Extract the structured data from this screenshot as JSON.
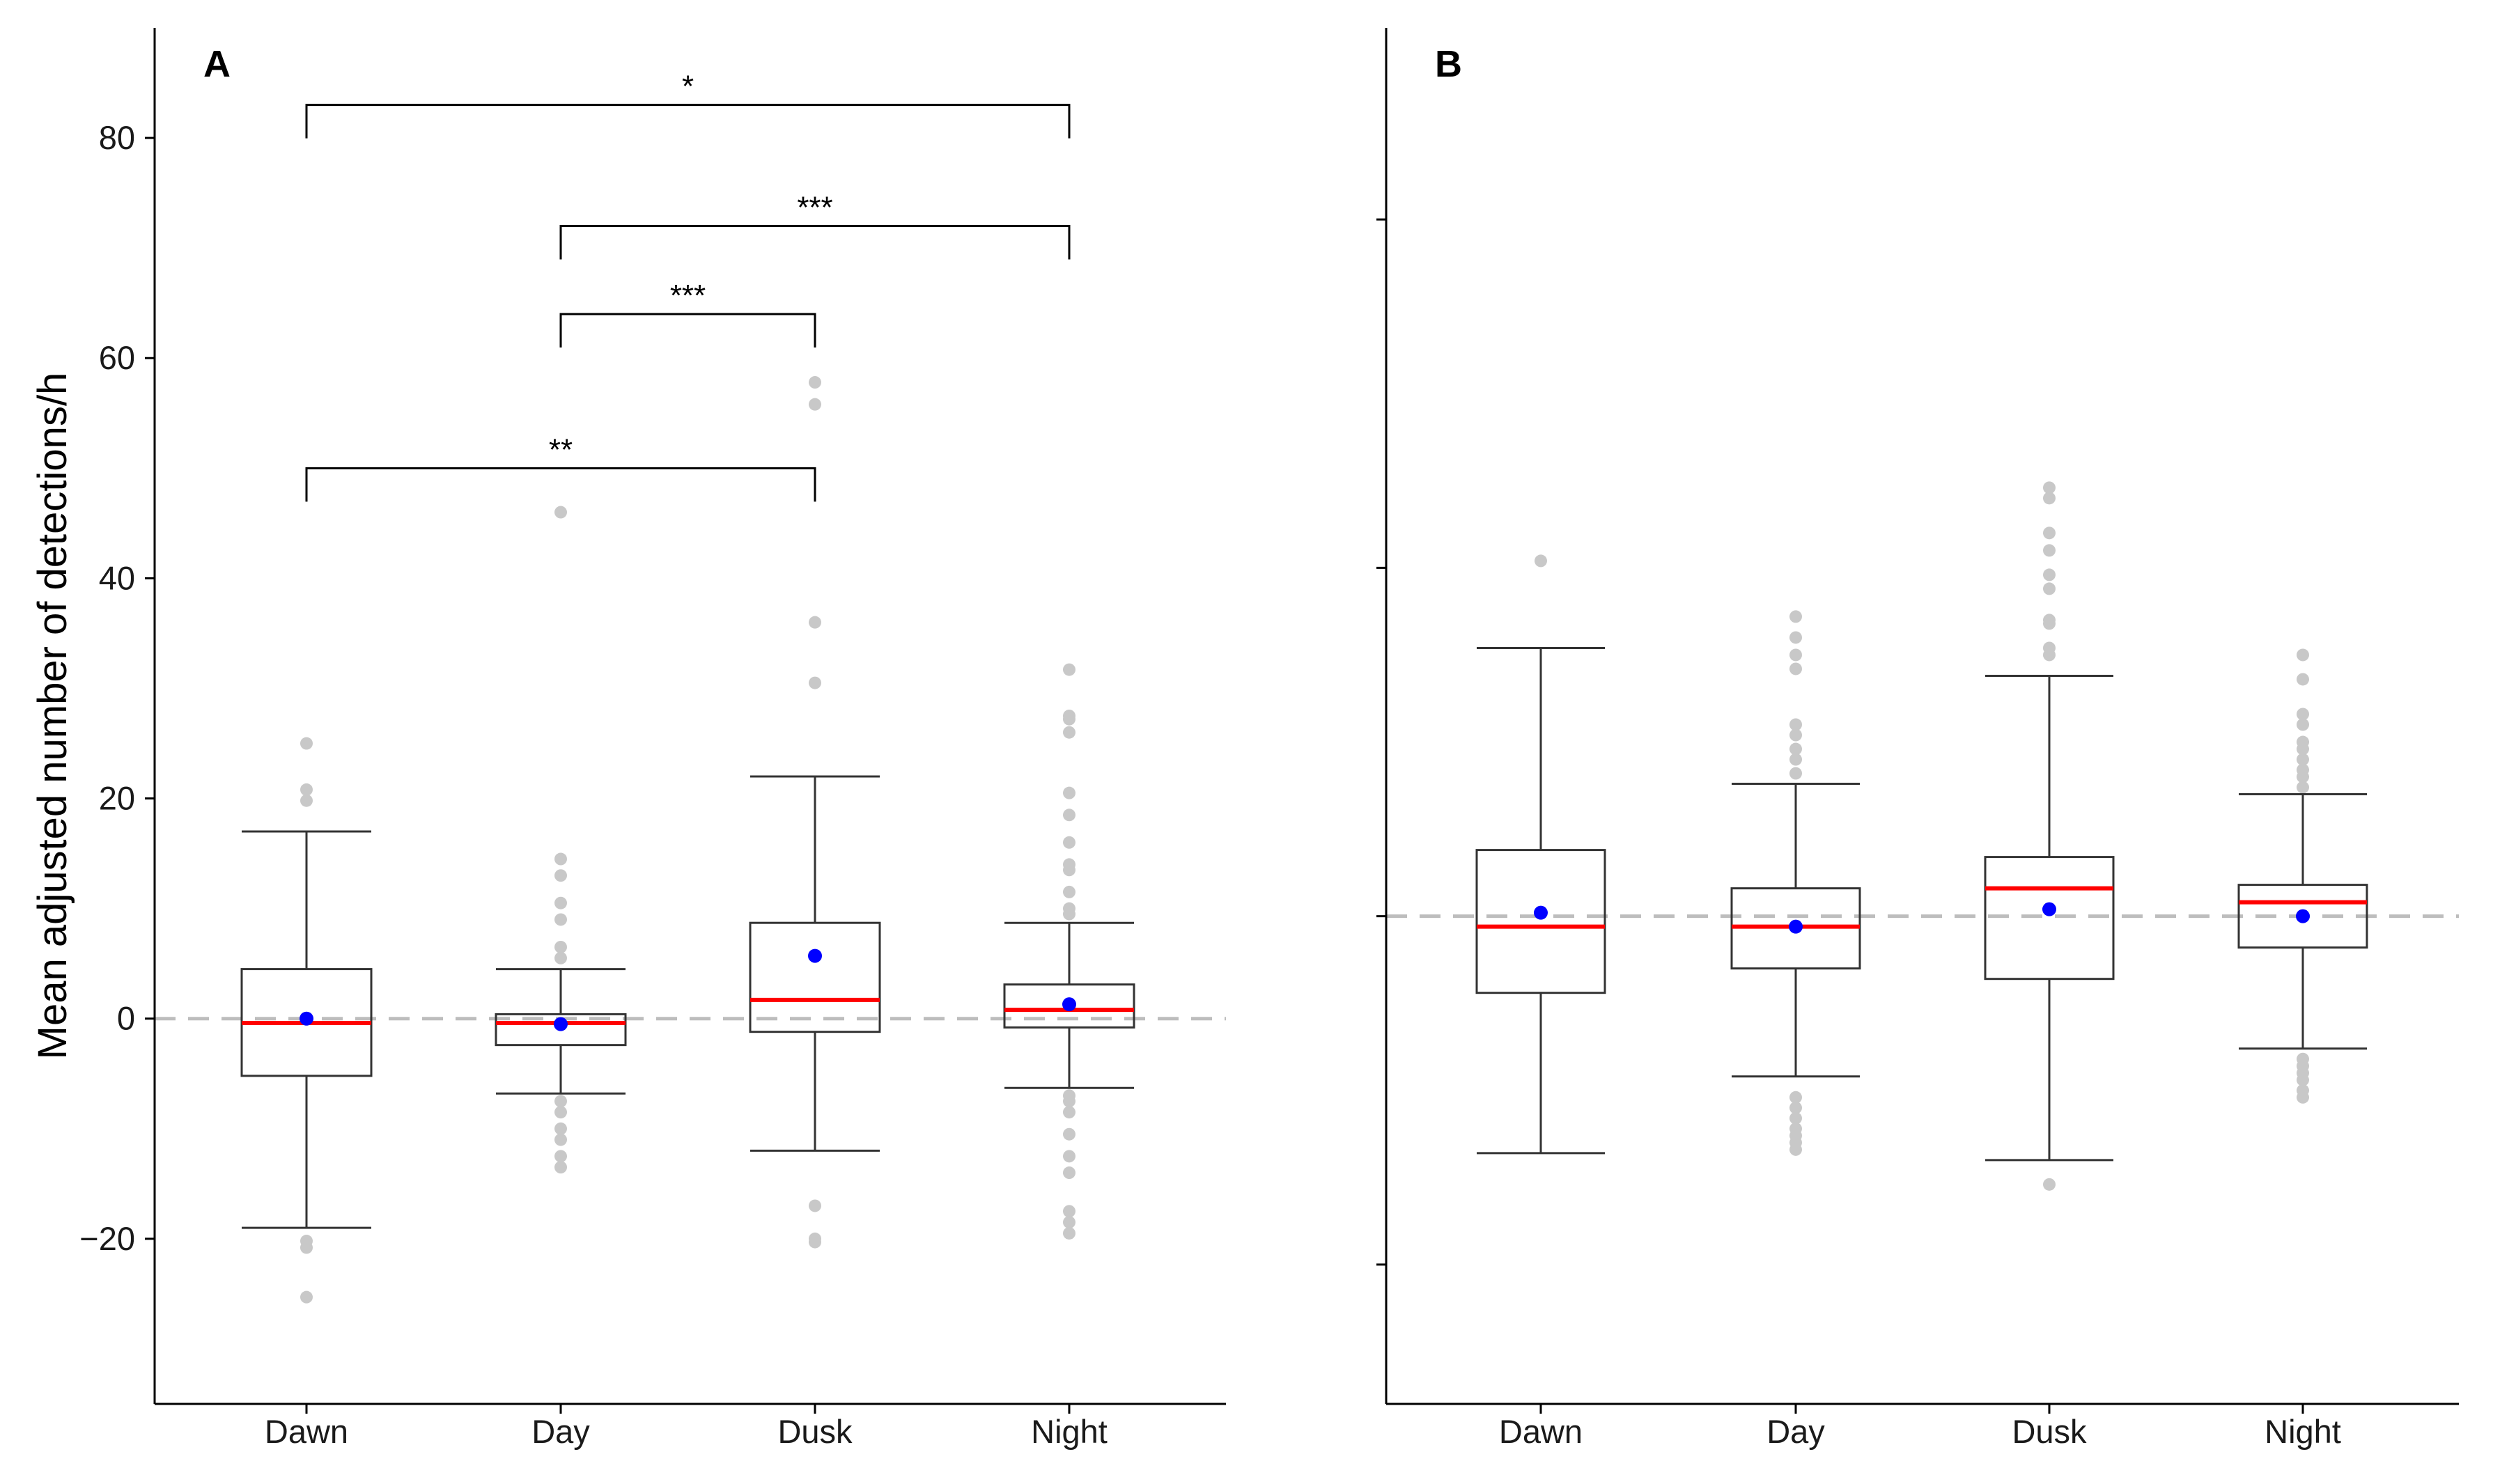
{
  "chart_data": [
    {
      "type": "box",
      "panel_label": "A",
      "ylabel": "Mean adjusted number of detections/h",
      "ylim": [
        -35,
        90
      ],
      "yticks": [
        -20,
        0,
        20,
        40,
        60,
        80
      ],
      "yticklabels": [
        "−20",
        "0",
        "20",
        "40",
        "60",
        "80"
      ],
      "reference_line": 0,
      "categories": [
        "Dawn",
        "Day",
        "Dusk",
        "Night"
      ],
      "boxes": [
        {
          "whisker_low": -19,
          "q1": -5.2,
          "median": -0.4,
          "q3": 4.5,
          "whisker_high": 17,
          "mean": 0,
          "outliers": [
            -20.2,
            -20.8,
            -25.3,
            19.8,
            20.8,
            25
          ]
        },
        {
          "whisker_low": -6.8,
          "q1": -2.4,
          "median": -0.4,
          "q3": 0.4,
          "whisker_high": 4.5,
          "mean": -0.5,
          "outliers": [
            5.5,
            6.5,
            9,
            10.5,
            13,
            14.5,
            46,
            -7.5,
            -8.5,
            -10,
            -11,
            -12.5,
            -13.5
          ]
        },
        {
          "whisker_low": -12,
          "q1": -1.2,
          "median": 1.7,
          "q3": 8.7,
          "whisker_high": 22,
          "mean": 5.7,
          "outliers": [
            30.5,
            36,
            55.8,
            57.8,
            -17,
            -20,
            -20.3
          ]
        },
        {
          "whisker_low": -6.3,
          "q1": -0.8,
          "median": 0.8,
          "q3": 3.1,
          "whisker_high": 8.7,
          "mean": 1.3,
          "outliers": [
            9.5,
            10,
            11.5,
            13.5,
            14,
            16,
            18.5,
            20.5,
            26,
            27.2,
            27.5,
            31.7,
            -7,
            -7.5,
            -8.5,
            -10.5,
            -12.5,
            -14,
            -17.5,
            -18.5,
            -19.5
          ]
        }
      ],
      "significance": [
        {
          "from": "Dawn",
          "to": "Night",
          "label": "*",
          "y": 83
        },
        {
          "from": "Day",
          "to": "Night",
          "label": "***",
          "y": 72
        },
        {
          "from": "Day",
          "to": "Dusk",
          "label": "***",
          "y": 64
        },
        {
          "from": "Dawn",
          "to": "Dusk",
          "label": "**",
          "y": 50
        }
      ]
    },
    {
      "type": "box",
      "panel_label": "B",
      "ylabel": "",
      "ylim": [
        -1.4,
        2.55
      ],
      "yticks": [
        -1,
        0,
        1,
        2
      ],
      "yticklabels": [
        "",
        "",
        "",
        ""
      ],
      "reference_line": 0,
      "categories": [
        "Dawn",
        "Day",
        "Dusk",
        "Night"
      ],
      "boxes": [
        {
          "whisker_low": -0.68,
          "q1": -0.22,
          "median": -0.03,
          "q3": 0.19,
          "whisker_high": 0.77,
          "mean": 0.01,
          "outliers": [
            1.02
          ]
        },
        {
          "whisker_low": -0.46,
          "q1": -0.15,
          "median": -0.03,
          "q3": 0.08,
          "whisker_high": 0.38,
          "mean": -0.03,
          "outliers": [
            0.41,
            0.45,
            0.48,
            0.52,
            0.55,
            0.71,
            0.75,
            0.8,
            0.86,
            -0.52,
            -0.55,
            -0.58,
            -0.61,
            -0.63,
            -0.65,
            -0.67
          ]
        },
        {
          "whisker_low": -0.7,
          "q1": -0.18,
          "median": 0.08,
          "q3": 0.17,
          "whisker_high": 0.69,
          "mean": 0.02,
          "outliers": [
            0.75,
            0.77,
            0.84,
            0.85,
            0.94,
            0.98,
            1.05,
            1.1,
            1.2,
            1.23,
            -0.77
          ]
        },
        {
          "whisker_low": -0.38,
          "q1": -0.09,
          "median": 0.04,
          "q3": 0.09,
          "whisker_high": 0.35,
          "mean": 0,
          "outliers": [
            0.37,
            0.4,
            0.42,
            0.45,
            0.48,
            0.5,
            0.55,
            0.58,
            0.68,
            0.75,
            -0.41,
            -0.43,
            -0.45,
            -0.47,
            -0.5,
            -0.52
          ]
        }
      ],
      "significance": []
    }
  ]
}
